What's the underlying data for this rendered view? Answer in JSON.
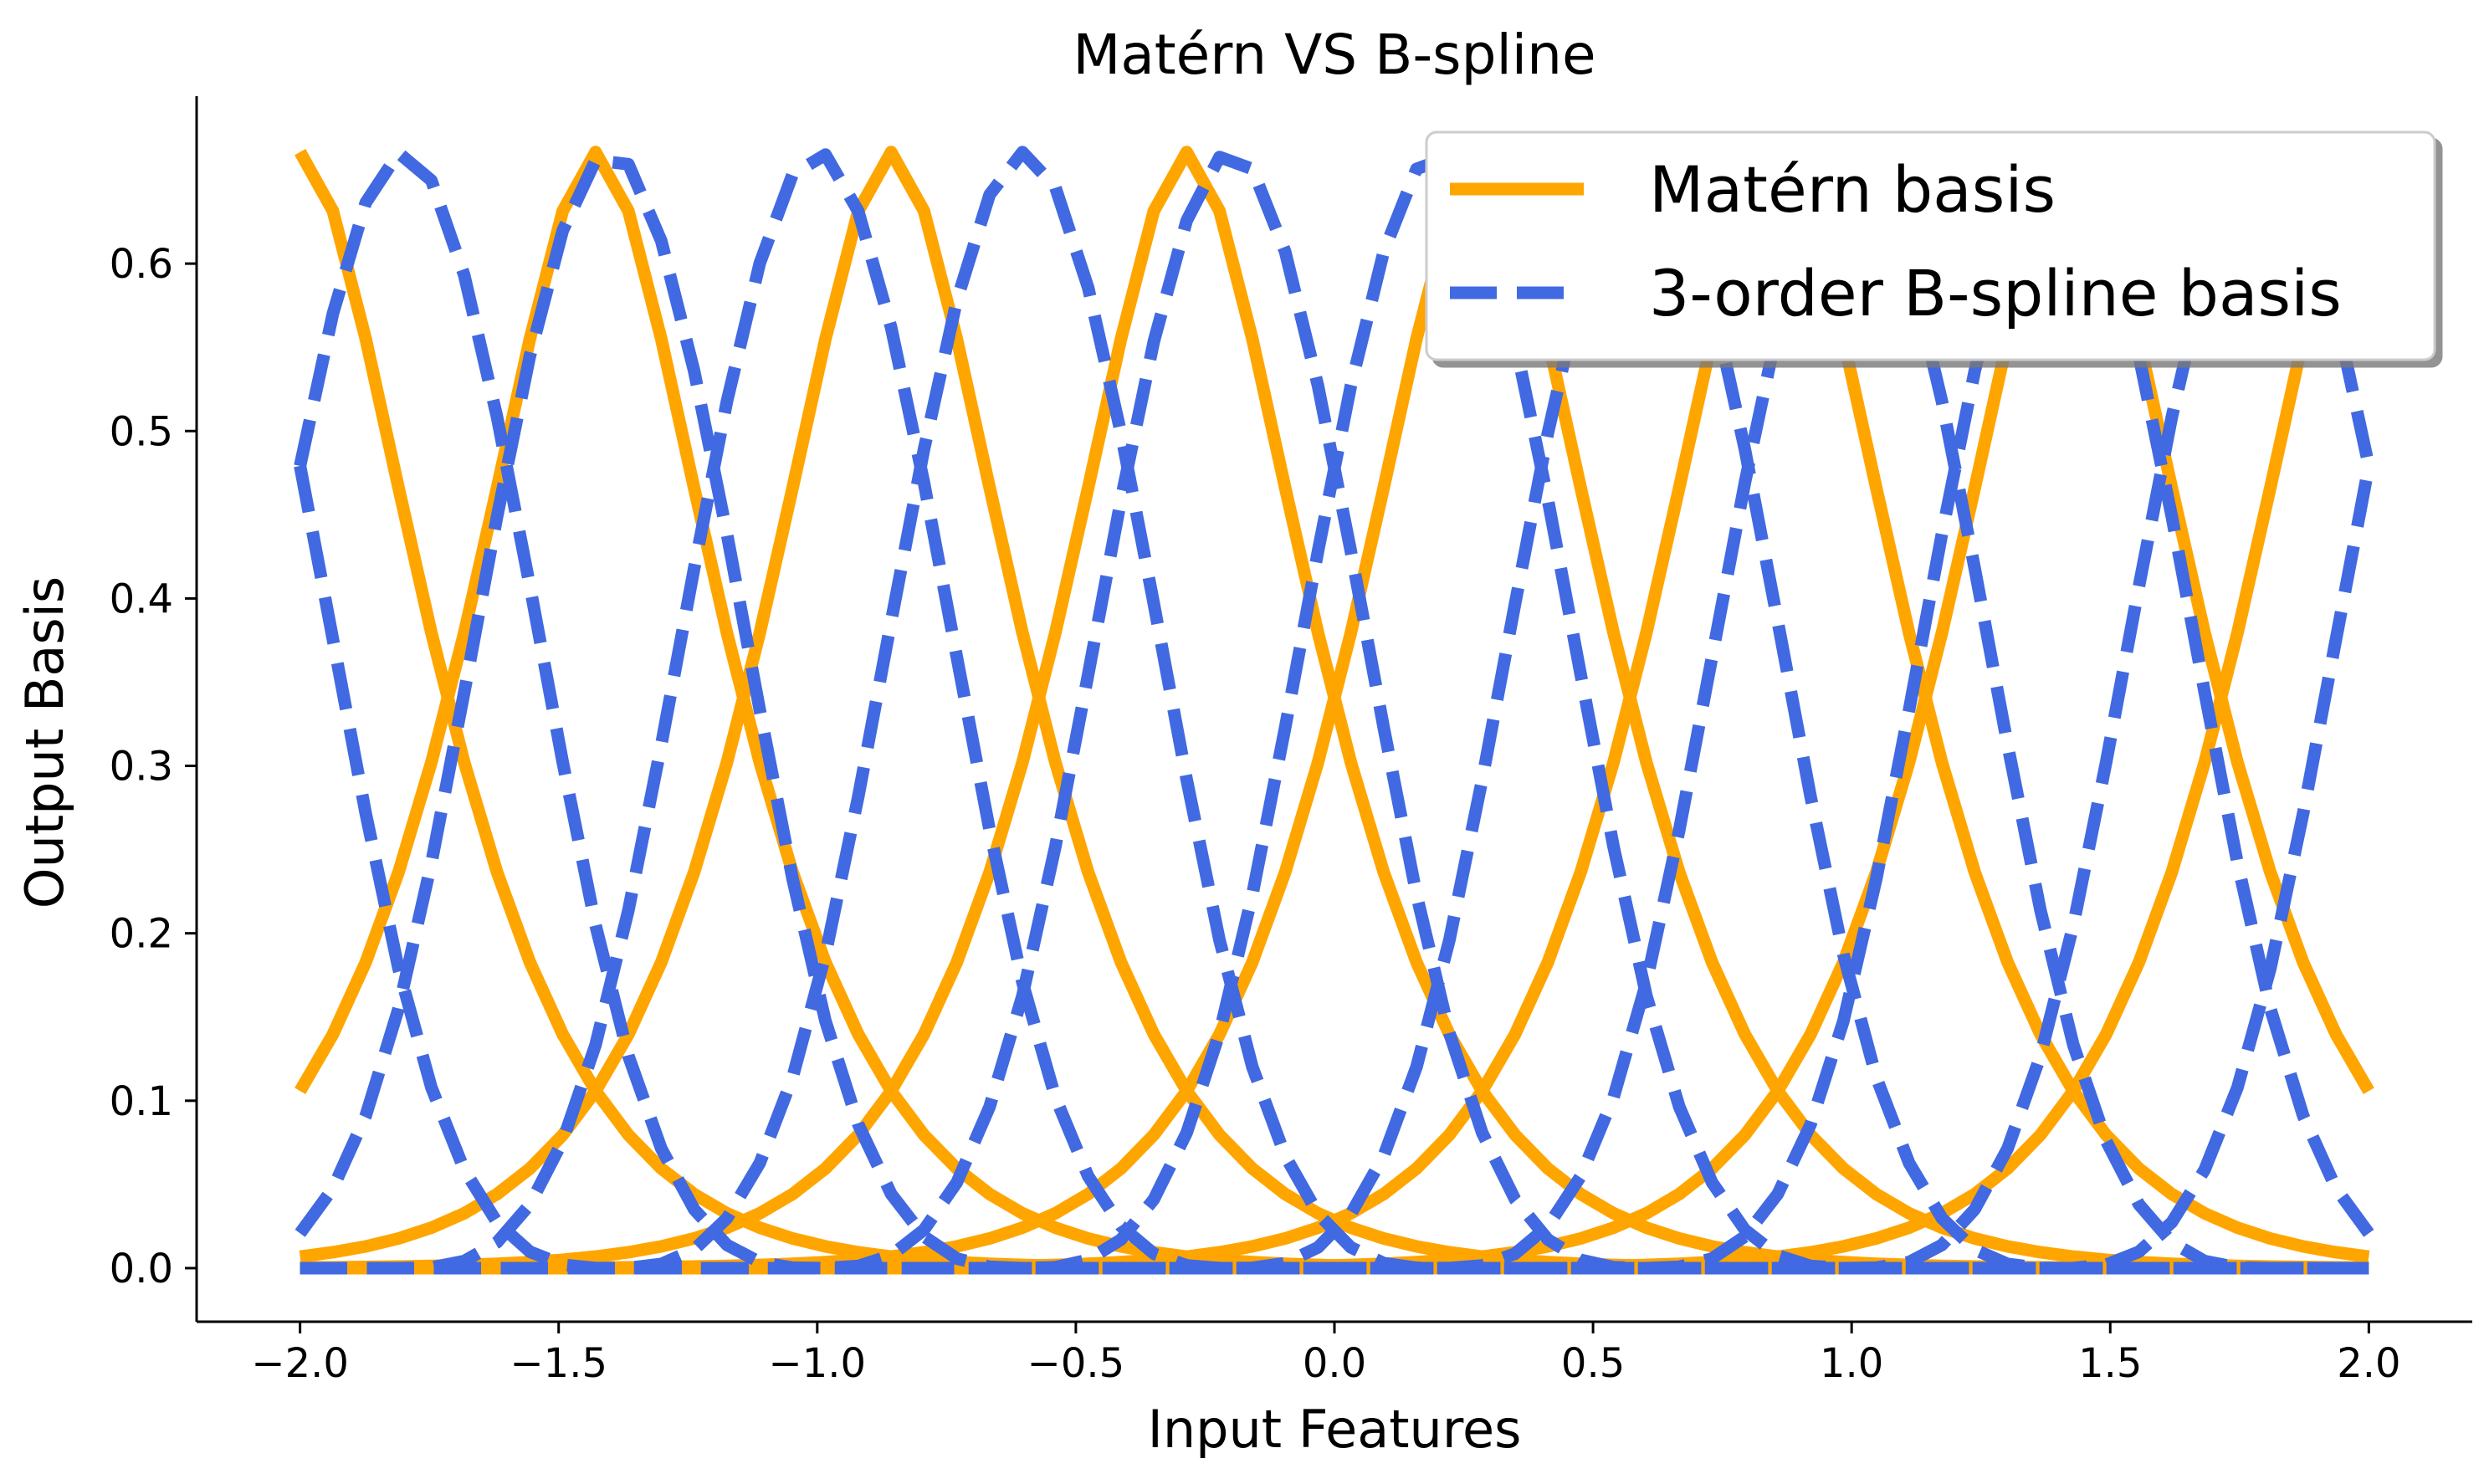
{
  "chart_data": {
    "type": "line",
    "title": "Matérn VS B-spline",
    "xlabel": "Input Features",
    "ylabel": "Output Basis",
    "xlim": [
      -2.2,
      2.2
    ],
    "ylim": [
      -0.032,
      0.7
    ],
    "xticks": [
      -2.0,
      -1.5,
      -1.0,
      -0.5,
      0.0,
      0.5,
      1.0,
      1.5,
      2.0
    ],
    "xtick_labels": [
      "−2.0",
      "−1.5",
      "−1.0",
      "−0.5",
      "0.0",
      "0.5",
      "1.0",
      "1.5",
      "2.0"
    ],
    "yticks": [
      0.0,
      0.1,
      0.2,
      0.3,
      0.4,
      0.5,
      0.6
    ],
    "ytick_labels": [
      "0.0",
      "0.1",
      "0.2",
      "0.3",
      "0.4",
      "0.5",
      "0.6"
    ],
    "grid": false,
    "legend_position": "top-right",
    "x_range": [
      -2.0,
      2.0
    ],
    "num_points": 64,
    "series": [
      {
        "name": "Matérn basis",
        "style": "solid",
        "color": "#FFA500",
        "formula": "0.6667*(1+sqrt(3)*|x-c|/0.3)*exp(-sqrt(3)*|x-c|/0.3)",
        "centers": [
          -2.0,
          -1.4286,
          -0.8571,
          -0.2857,
          0.2857,
          0.8571,
          1.4286,
          2.0
        ]
      },
      {
        "name": "3-order B-spline basis",
        "style": "dashed",
        "color": "#4169E1",
        "formula": "cubic B-spline, peak 0.6667, knot spacing 0.4",
        "centers": [
          -2.2,
          -1.8,
          -1.4,
          -1.0,
          -0.6,
          -0.2,
          0.2,
          0.6,
          1.0,
          1.4,
          1.8,
          2.2
        ]
      }
    ]
  }
}
